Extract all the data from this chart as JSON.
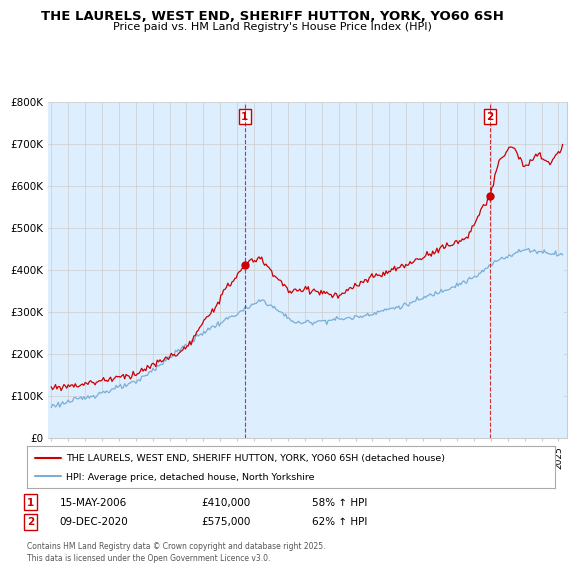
{
  "title1": "THE LAURELS, WEST END, SHERIFF HUTTON, YORK, YO60 6SH",
  "title2": "Price paid vs. HM Land Registry's House Price Index (HPI)",
  "legend_label_red": "THE LAURELS, WEST END, SHERIFF HUTTON, YORK, YO60 6SH (detached house)",
  "legend_label_blue": "HPI: Average price, detached house, North Yorkshire",
  "footer": "Contains HM Land Registry data © Crown copyright and database right 2025.\nThis data is licensed under the Open Government Licence v3.0.",
  "transaction1_label": "1",
  "transaction1_date": "15-MAY-2006",
  "transaction1_price": "£410,000",
  "transaction1_hpi": "58% ↑ HPI",
  "transaction2_label": "2",
  "transaction2_date": "09-DEC-2020",
  "transaction2_price": "£575,000",
  "transaction2_hpi": "62% ↑ HPI",
  "red_color": "#cc0000",
  "blue_color": "#7aaed6",
  "blue_fill": "#ddeeff",
  "marker1_x": 2006.45,
  "marker1_y": 410000,
  "marker2_x": 2020.94,
  "marker2_y": 575000,
  "vline1_x": 2006.45,
  "vline2_x": 2020.94,
  "ylim": [
    0,
    800000
  ],
  "xlim": [
    1994.8,
    2025.5
  ],
  "grid_color": "#cccccc",
  "bg_color": "#ddeeff"
}
